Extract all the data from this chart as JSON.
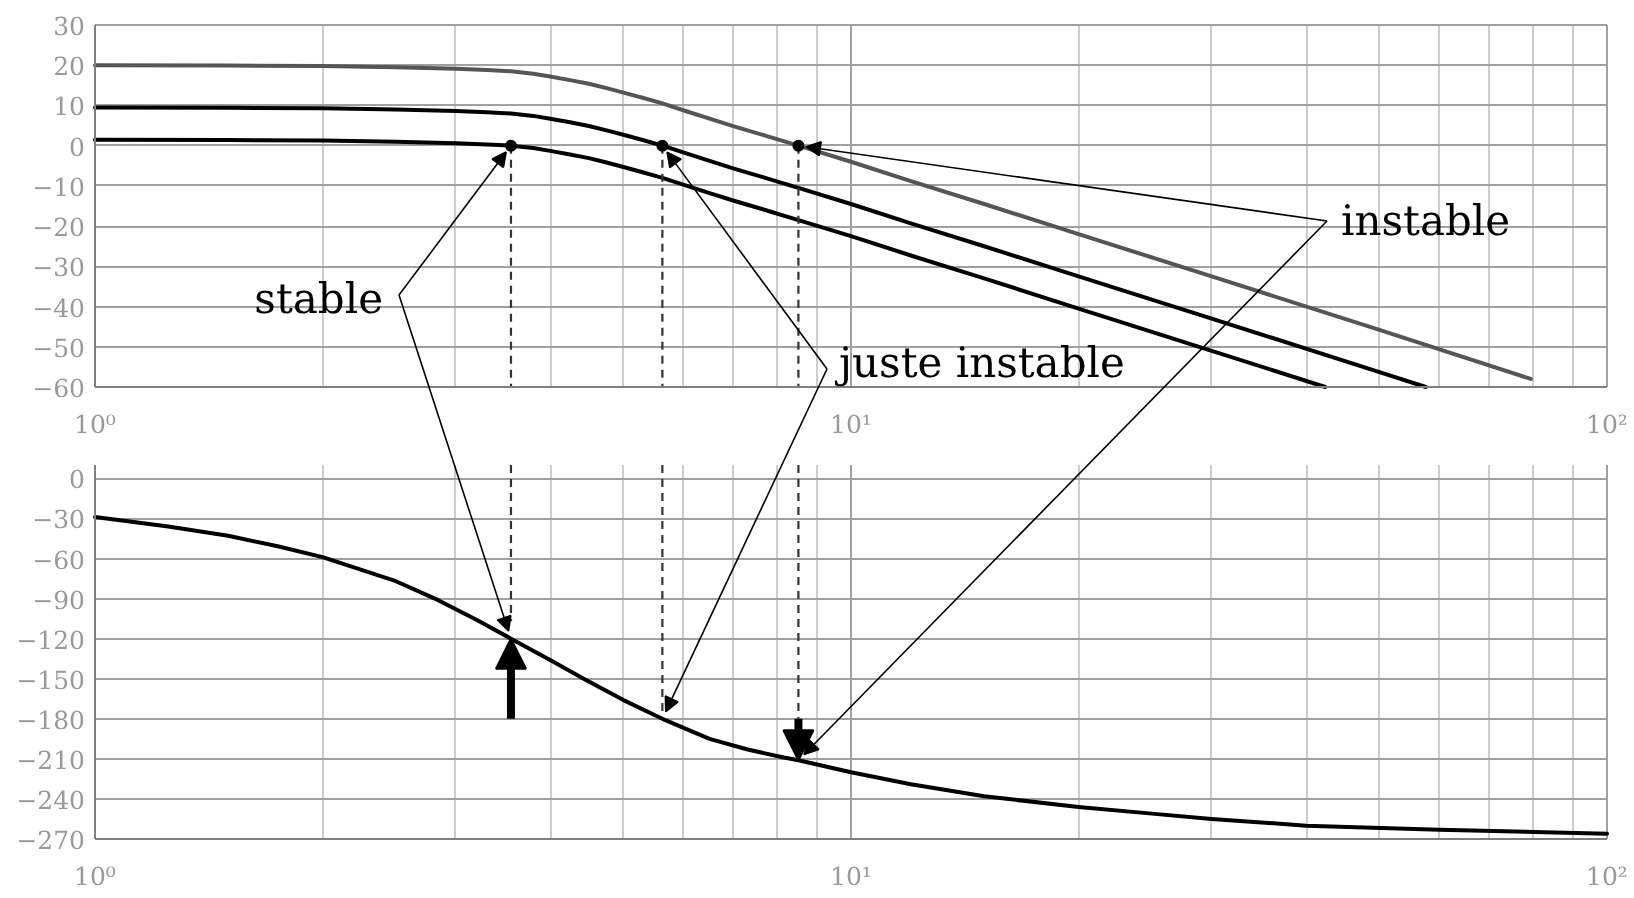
{
  "chart_data": [
    {
      "type": "line",
      "log": "x",
      "grid": true,
      "xlim": [
        1,
        100
      ],
      "xticks": [
        {
          "value": 1,
          "label": "10⁰"
        },
        {
          "value": 2,
          "label": null
        },
        {
          "value": 3,
          "label": null
        },
        {
          "value": 4,
          "label": null
        },
        {
          "value": 5,
          "label": null
        },
        {
          "value": 6,
          "label": null
        },
        {
          "value": 7,
          "label": null
        },
        {
          "value": 8,
          "label": null
        },
        {
          "value": 9,
          "label": null
        },
        {
          "value": 10,
          "label": "10¹"
        },
        {
          "value": 20,
          "label": null
        },
        {
          "value": 30,
          "label": null
        },
        {
          "value": 40,
          "label": null
        },
        {
          "value": 50,
          "label": null
        },
        {
          "value": 60,
          "label": null
        },
        {
          "value": 70,
          "label": null
        },
        {
          "value": 80,
          "label": null
        },
        {
          "value": 90,
          "label": null
        },
        {
          "value": 100,
          "label": "10²"
        }
      ],
      "ylim": [
        -60,
        30
      ],
      "yticks": [
        {
          "value": -60,
          "label": "−60"
        },
        {
          "value": -50,
          "label": "−50"
        },
        {
          "value": -40,
          "label": "−40"
        },
        {
          "value": -30,
          "label": "−30"
        },
        {
          "value": -20,
          "label": "−20"
        },
        {
          "value": -10,
          "label": "−10"
        },
        0,
        10,
        20,
        30
      ],
      "series": [
        {
          "color": "#555555",
          "x": [
            1,
            1.5,
            2,
            2.5,
            3,
            3.3,
            3.55,
            3.8,
            4,
            4.25,
            4.5,
            4.75,
            5,
            5.3,
            5.63,
            6.07,
            6.5,
            7,
            7.7,
            8.52,
            10,
            12,
            15,
            20,
            30,
            50,
            79.3
          ],
          "values": [
            20,
            19.9,
            19.8,
            19.5,
            19.1,
            18.8,
            18.5,
            17.9,
            17.2,
            16.3,
            15.4,
            14.3,
            13.2,
            11.9,
            10.5,
            8.5,
            6.7,
            4.8,
            2.5,
            0,
            -4,
            -8.8,
            -14.5,
            -22,
            -32.5,
            -45.8,
            -58
          ]
        },
        {
          "color": "#000000",
          "x": [
            1,
            1.5,
            2,
            2.5,
            3,
            3.3,
            3.55,
            3.8,
            4,
            4.25,
            4.5,
            4.75,
            5,
            5.3,
            5.63,
            6.07,
            6.5,
            7,
            7.7,
            8.52,
            10,
            12,
            15,
            20,
            30,
            50,
            57.6
          ],
          "values": [
            9.5,
            9.4,
            9.3,
            9,
            8.6,
            8.3,
            8,
            7.4,
            6.7,
            5.8,
            4.9,
            3.8,
            2.7,
            1.4,
            0,
            -2,
            -3.8,
            -5.7,
            -8,
            -10.5,
            -14.5,
            -19.3,
            -25,
            -32.5,
            -43,
            -56.3,
            -60
          ]
        },
        {
          "color": "#000000",
          "x": [
            1,
            1.5,
            2,
            2.5,
            3,
            3.3,
            3.55,
            3.8,
            4,
            4.25,
            4.5,
            4.75,
            5,
            5.3,
            5.63,
            6.07,
            6.5,
            7,
            7.7,
            8.52,
            10,
            12,
            15,
            20,
            30,
            42.4
          ],
          "values": [
            1.5,
            1.4,
            1.3,
            1,
            0.6,
            0.3,
            0,
            -0.6,
            -1.3,
            -2.2,
            -3.1,
            -4.2,
            -5.3,
            -6.6,
            -8,
            -10,
            -11.8,
            -13.7,
            -16,
            -18.5,
            -22.5,
            -27.3,
            -33,
            -40.5,
            -51,
            -60
          ]
        },
        {
          "color": "#333333",
          "line_style": "dashed",
          "x": [
            3.55,
            3.55
          ],
          "values": [
            0,
            -60
          ]
        },
        {
          "color": "#333333",
          "line_style": "dashed",
          "x": [
            5.63,
            5.63
          ],
          "values": [
            0,
            -60
          ]
        },
        {
          "color": "#333333",
          "line_style": "dashed",
          "x": [
            8.52,
            8.52
          ],
          "values": [
            0,
            -60
          ]
        },
        {
          "type": "scatter",
          "marker": "circle",
          "color": "#000000",
          "x": [
            3.55,
            5.63,
            8.52
          ],
          "values": [
            0,
            0,
            0
          ]
        }
      ],
      "annotations": [
        {
          "text": "stable",
          "x": 3.55,
          "y": 0
        },
        {
          "text": "juste instable",
          "x": 5.63,
          "y": 0
        },
        {
          "text": "instable",
          "x": 8.52,
          "y": 0
        }
      ]
    },
    {
      "type": "line",
      "log": "x",
      "grid": true,
      "xlim": [
        1,
        100
      ],
      "xticks": [
        {
          "value": 1,
          "label": "10⁰"
        },
        {
          "value": 2,
          "label": null
        },
        {
          "value": 3,
          "label": null
        },
        {
          "value": 4,
          "label": null
        },
        {
          "value": 5,
          "label": null
        },
        {
          "value": 6,
          "label": null
        },
        {
          "value": 7,
          "label": null
        },
        {
          "value": 8,
          "label": null
        },
        {
          "value": 9,
          "label": null
        },
        {
          "value": 10,
          "label": "10¹"
        },
        {
          "value": 20,
          "label": null
        },
        {
          "value": 30,
          "label": null
        },
        {
          "value": 40,
          "label": null
        },
        {
          "value": 50,
          "label": null
        },
        {
          "value": 60,
          "label": null
        },
        {
          "value": 70,
          "label": null
        },
        {
          "value": 80,
          "label": null
        },
        {
          "value": 90,
          "label": null
        },
        {
          "value": 100,
          "label": "10²"
        }
      ],
      "ylim": [
        -270,
        10
      ],
      "yticks": [
        {
          "value": -270,
          "label": "−270"
        },
        {
          "value": -240,
          "label": "−240"
        },
        {
          "value": -210,
          "label": "−210"
        },
        {
          "value": -180,
          "label": "−180"
        },
        {
          "value": -150,
          "label": "−150"
        },
        {
          "value": -120,
          "label": "−120"
        },
        {
          "value": -90,
          "label": "−90"
        },
        {
          "value": -60,
          "label": "−60"
        },
        {
          "value": -30,
          "label": "−30"
        },
        0
      ],
      "series": [
        {
          "color": "#000000",
          "x": [
            1,
            1.25,
            1.5,
            1.75,
            2,
            2.5,
            2.84,
            3.2,
            3.55,
            4,
            4.43,
            5,
            5.63,
            6.5,
            7.3,
            8.15,
            8.52,
            10,
            12,
            15,
            20,
            25,
            30,
            40,
            60,
            100
          ],
          "values": [
            -29,
            -36,
            -43,
            -51,
            -59,
            -77,
            -91,
            -106,
            -120,
            -136,
            -150,
            -166,
            -180,
            -195,
            -203,
            -209,
            -211,
            -220,
            -229,
            -238,
            -246,
            -251,
            -255,
            -260,
            -263,
            -266
          ]
        },
        {
          "color": "#333333",
          "line_style": "dashed",
          "x": [
            3.55,
            3.55
          ],
          "values": [
            10,
            -107
          ]
        },
        {
          "color": "#333333",
          "line_style": "dashed",
          "x": [
            5.63,
            5.63
          ],
          "values": [
            10,
            -175
          ]
        },
        {
          "color": "#333333",
          "line_style": "dashed",
          "x": [
            8.52,
            8.52
          ],
          "values": [
            10,
            -180
          ]
        }
      ]
    }
  ]
}
